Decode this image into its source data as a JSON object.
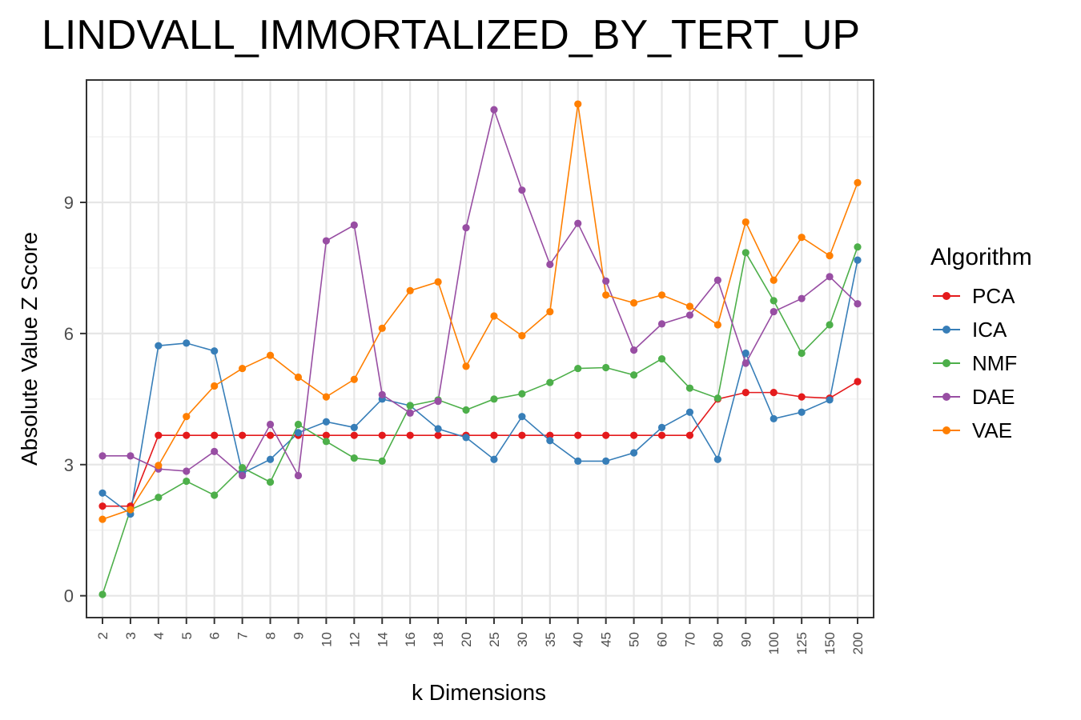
{
  "chart_data": {
    "type": "line",
    "title": "LINDVALL_IMMORTALIZED_BY_TERT_UP",
    "xlabel": "k Dimensions",
    "ylabel": "Absolute Value Z Score",
    "ylim": [
      -0.5,
      11.8
    ],
    "yticks": [
      0,
      3,
      6,
      9
    ],
    "grid": true,
    "legend_title": "Algorithm",
    "legend_position": "right",
    "categories": [
      "2",
      "3",
      "4",
      "5",
      "6",
      "7",
      "8",
      "9",
      "10",
      "12",
      "14",
      "16",
      "18",
      "20",
      "25",
      "30",
      "35",
      "40",
      "45",
      "50",
      "60",
      "70",
      "80",
      "90",
      "100",
      "125",
      "150",
      "200"
    ],
    "series": [
      {
        "name": "PCA",
        "color": "#E41A1C",
        "values": [
          2.05,
          2.05,
          3.67,
          3.67,
          3.67,
          3.67,
          3.67,
          3.67,
          3.67,
          3.67,
          3.67,
          3.67,
          3.67,
          3.67,
          3.67,
          3.67,
          3.67,
          3.67,
          3.67,
          3.67,
          3.67,
          3.67,
          4.5,
          4.65,
          4.65,
          4.55,
          4.52,
          4.9
        ]
      },
      {
        "name": "ICA",
        "color": "#377EB8",
        "values": [
          2.35,
          1.87,
          5.72,
          5.78,
          5.6,
          2.8,
          3.12,
          3.73,
          3.98,
          3.85,
          4.5,
          4.35,
          3.82,
          3.62,
          3.12,
          4.1,
          3.55,
          3.08,
          3.08,
          3.27,
          3.85,
          4.2,
          3.12,
          5.55,
          4.05,
          4.2,
          4.48,
          7.68
        ]
      },
      {
        "name": "NMF",
        "color": "#4DAF4A",
        "values": [
          0.03,
          1.97,
          2.25,
          2.62,
          2.3,
          2.93,
          2.6,
          3.92,
          3.53,
          3.15,
          3.08,
          4.35,
          4.48,
          4.25,
          4.5,
          4.62,
          4.88,
          5.2,
          5.22,
          5.05,
          5.42,
          4.75,
          4.52,
          7.85,
          6.75,
          5.55,
          6.2,
          7.98
        ]
      },
      {
        "name": "DAE",
        "color": "#984EA3",
        "values": [
          3.2,
          3.2,
          2.9,
          2.85,
          3.3,
          2.75,
          3.92,
          2.75,
          8.12,
          8.48,
          4.6,
          4.18,
          4.45,
          8.42,
          11.12,
          9.28,
          7.58,
          8.52,
          7.2,
          5.62,
          6.22,
          6.42,
          7.22,
          5.32,
          6.5,
          6.8,
          7.3,
          6.68
        ]
      },
      {
        "name": "VAE",
        "color": "#FF7F00",
        "values": [
          1.75,
          1.97,
          2.98,
          4.1,
          4.8,
          5.2,
          5.5,
          5.0,
          4.55,
          4.95,
          6.12,
          6.98,
          7.18,
          5.25,
          6.4,
          5.95,
          6.5,
          11.25,
          6.88,
          6.7,
          6.88,
          6.62,
          6.2,
          8.55,
          7.22,
          8.2,
          7.78,
          9.45
        ]
      }
    ]
  }
}
